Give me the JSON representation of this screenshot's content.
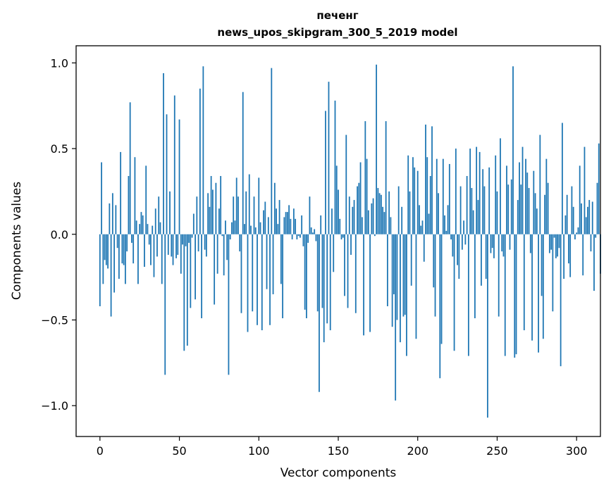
{
  "chart_data": {
    "type": "bar",
    "title": "печенг",
    "subtitle": "news_upos_skipgram_300_5_2019 model",
    "xlabel": "Vector components",
    "ylabel": "Components values",
    "xlim": [
      -15,
      315
    ],
    "ylim": [
      -1.18,
      1.1
    ],
    "xticks": [
      0,
      50,
      100,
      150,
      200,
      250,
      300
    ],
    "yticks": [
      -1.0,
      -0.5,
      0.0,
      0.5,
      1.0
    ],
    "ytick_labels": [
      "−1.0",
      "−0.5",
      "0.0",
      "0.5",
      "1.0"
    ],
    "bar_color": "#1f77b4",
    "grid": false,
    "legend": "none",
    "values": [
      -0.42,
      0.42,
      -0.29,
      -0.15,
      -0.18,
      -0.2,
      0.18,
      -0.48,
      0.24,
      -0.34,
      0.17,
      -0.08,
      -0.26,
      0.48,
      -0.17,
      -0.18,
      -0.29,
      -0.1,
      0.34,
      0.77,
      -0.05,
      -0.17,
      0.45,
      0.08,
      -0.29,
      0.06,
      0.13,
      0.11,
      -0.19,
      0.4,
      0.06,
      -0.06,
      -0.18,
      0.05,
      -0.25,
      0.15,
      -0.13,
      0.22,
      0.07,
      -0.29,
      0.94,
      -0.82,
      0.7,
      -0.12,
      0.25,
      -0.13,
      -0.18,
      0.81,
      -0.14,
      -0.12,
      0.67,
      -0.23,
      -0.06,
      -0.68,
      -0.07,
      -0.65,
      -0.05,
      -0.43,
      -0.02,
      0.12,
      -0.38,
      0.22,
      -0.1,
      0.85,
      -0.49,
      0.98,
      -0.09,
      -0.13,
      0.24,
      0.16,
      0.34,
      0.26,
      -0.41,
      0.3,
      -0.23,
      0.15,
      0.34,
      -0.01,
      -0.24,
      0.08,
      -0.15,
      -0.82,
      -0.03,
      0.07,
      0.22,
      0.08,
      0.33,
      0.22,
      -0.1,
      -0.46,
      0.83,
      0.06,
      0.25,
      -0.57,
      0.35,
      0.05,
      -0.45,
      0.22,
      0.04,
      -0.53,
      0.33,
      0.07,
      -0.56,
      0.14,
      0.19,
      -0.32,
      0.1,
      -0.53,
      0.97,
      -0.35,
      0.3,
      0.15,
      0.06,
      0.2,
      -0.29,
      -0.49,
      0.1,
      0.13,
      0.13,
      0.17,
      0.09,
      -0.03,
      0.15,
      0.09,
      -0.03,
      -0.01,
      -0.02,
      0.11,
      -0.07,
      -0.44,
      -0.49,
      -0.05,
      0.22,
      0.04,
      0.01,
      0.03,
      -0.04,
      -0.45,
      -0.92,
      0.11,
      -0.43,
      -0.63,
      0.72,
      -0.52,
      0.89,
      -0.56,
      0.15,
      -0.22,
      0.78,
      0.4,
      0.26,
      0.09,
      -0.03,
      -0.02,
      -0.36,
      0.58,
      -0.43,
      0.22,
      -0.12,
      0.16,
      0.2,
      -0.46,
      0.28,
      0.3,
      0.42,
      0.1,
      -0.59,
      0.66,
      0.44,
      0.14,
      -0.57,
      0.18,
      0.21,
      -0.01,
      0.99,
      0.27,
      0.24,
      0.23,
      0.16,
      0.13,
      0.66,
      -0.42,
      0.25,
      0.1,
      -0.54,
      -0.35,
      -0.97,
      -0.5,
      0.28,
      -0.63,
      0.16,
      -0.48,
      -0.47,
      -0.71,
      0.46,
      0.25,
      -0.3,
      0.45,
      0.39,
      -0.61,
      0.37,
      0.17,
      0.05,
      0.08,
      -0.16,
      0.64,
      0.45,
      0.12,
      0.34,
      0.63,
      -0.31,
      -0.48,
      0.44,
      0.24,
      -0.84,
      -0.64,
      0.44,
      0.11,
      0.02,
      0.17,
      0.41,
      -0.03,
      -0.13,
      -0.68,
      0.5,
      -0.18,
      -0.26,
      0.28,
      -0.09,
      0.08,
      -0.06,
      0.34,
      -0.71,
      0.5,
      0.27,
      0.14,
      -0.49,
      0.51,
      0.2,
      0.48,
      -0.3,
      0.38,
      0.28,
      -0.26,
      -1.07,
      0.39,
      -0.11,
      -0.08,
      -0.14,
      0.46,
      0.25,
      -0.48,
      0.56,
      -0.1,
      -0.13,
      -0.71,
      0.4,
      0.29,
      -0.09,
      0.32,
      0.98,
      -0.72,
      -0.7,
      0.2,
      0.42,
      0.29,
      0.51,
      -0.56,
      0.44,
      0.36,
      0.27,
      -0.11,
      -0.62,
      0.37,
      0.24,
      0.15,
      -0.69,
      0.58,
      -0.36,
      -0.61,
      0.23,
      0.44,
      0.3,
      -0.11,
      -0.09,
      -0.45,
      -0.02,
      -0.14,
      -0.13,
      -0.08,
      -0.77,
      0.65,
      -0.26,
      0.11,
      0.23,
      -0.17,
      -0.25,
      0.28,
      0.16,
      -0.03,
      0.01,
      0.04,
      0.4,
      0.18,
      -0.24,
      0.51,
      0.1,
      0.16,
      0.2,
      -0.1,
      0.19,
      -0.33,
      -0.02,
      0.3,
      0.53,
      -0.23
    ]
  }
}
